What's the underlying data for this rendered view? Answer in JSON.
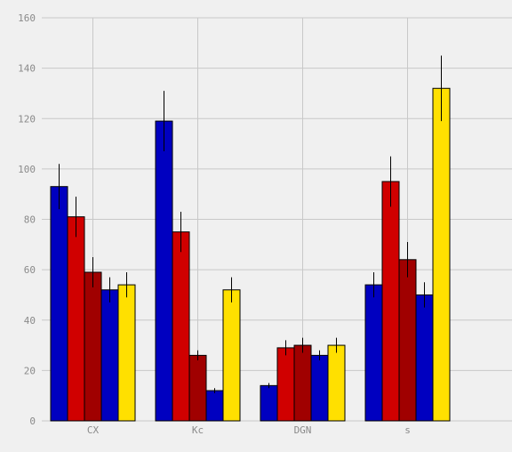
{
  "chart_data": {
    "type": "bar",
    "categories": [
      "CX",
      "Kc",
      "DGN",
      "s"
    ],
    "series": [
      {
        "color": "#0000c0",
        "values": [
          93,
          119,
          14,
          54
        ],
        "errors": [
          9,
          12,
          1,
          5
        ]
      },
      {
        "color": "#d00000",
        "values": [
          81,
          75,
          29,
          95
        ],
        "errors": [
          8,
          8,
          3,
          10
        ]
      },
      {
        "color": "#a00000",
        "values": [
          59,
          26,
          30,
          64
        ],
        "errors": [
          6,
          2,
          3,
          7
        ]
      },
      {
        "color": "#0000c0",
        "values": [
          52,
          12,
          26,
          50
        ],
        "errors": [
          5,
          1,
          2,
          5
        ]
      },
      {
        "color": "#ffe000",
        "values": [
          54,
          52,
          30,
          132
        ],
        "errors": [
          5,
          5,
          3,
          13
        ]
      }
    ],
    "yticks": [
      "0",
      "20",
      "40",
      "60",
      "80",
      "100",
      "120",
      "140",
      "160"
    ],
    "ylim": [
      0,
      160
    ],
    "grid": true
  }
}
